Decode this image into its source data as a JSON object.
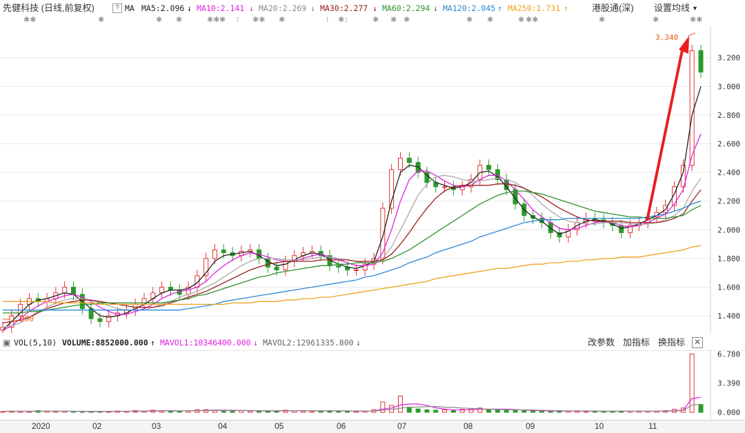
{
  "header": {
    "title": "先健科技 (日线,前复权)",
    "help_icon": "question-icon",
    "ma_label": "MA",
    "ma_items": [
      {
        "label": "MA5:2.096",
        "arrow": "↓",
        "color": "#222222"
      },
      {
        "label": "MA10:2.141",
        "arrow": "↓",
        "color": "#e020e0"
      },
      {
        "label": "MA20:2.269",
        "arrow": "↓",
        "color": "#999999"
      },
      {
        "label": "MA30:2.277",
        "arrow": "↓",
        "color": "#9b1c1c"
      },
      {
        "label": "MA60:2.294",
        "arrow": "↓",
        "color": "#2f8f2f"
      },
      {
        "label": "MA120:2.045",
        "arrow": "↑",
        "color": "#2a88d8"
      },
      {
        "label": "MA250:1.731",
        "arrow": "↑",
        "color": "#f0a020"
      }
    ],
    "hk_connect": "港股通(深)",
    "settings": "设置均线"
  },
  "colors": {
    "up": "#e03030",
    "down": "#2a9a2a",
    "grid": "#e6e6e6",
    "axis_text": "#333333",
    "highlight": "#e85a10",
    "arrow": "#e81e1e"
  },
  "chart_data": [
    {
      "type": "line",
      "title": "先健科技 (日线,前复权)",
      "ylim": [
        1.28,
        3.42
      ],
      "y_ticks": [
        "3.200",
        "3.000",
        "2.800",
        "2.600",
        "2.400",
        "2.200",
        "2.000",
        "1.800",
        "1.600",
        "1.400"
      ],
      "x_tick_labels": [
        "2020",
        "02",
        "03",
        "04",
        "05",
        "06",
        "07",
        "08",
        "09",
        "10",
        "11"
      ],
      "annotations": {
        "high_label": "3.340",
        "low_label": "1.290"
      },
      "series": [
        {
          "name": "Close",
          "values": [
            1.32,
            1.4,
            1.48,
            1.52,
            1.5,
            1.52,
            1.56,
            1.6,
            1.55,
            1.45,
            1.38,
            1.36,
            1.4,
            1.42,
            1.44,
            1.48,
            1.52,
            1.56,
            1.6,
            1.58,
            1.55,
            1.6,
            1.68,
            1.8,
            1.86,
            1.84,
            1.82,
            1.85,
            1.86,
            1.8,
            1.74,
            1.72,
            1.78,
            1.82,
            1.84,
            1.85,
            1.82,
            1.75,
            1.74,
            1.72,
            1.72,
            1.76,
            1.8,
            2.15,
            2.42,
            2.5,
            2.47,
            2.4,
            2.33,
            2.3,
            2.3,
            2.28,
            2.3,
            2.35,
            2.45,
            2.42,
            2.35,
            2.28,
            2.18,
            2.1,
            2.08,
            2.05,
            1.98,
            1.95,
            2.0,
            2.05,
            2.08,
            2.07,
            2.05,
            2.03,
            1.98,
            2.03,
            2.05,
            2.09,
            2.12,
            2.17,
            2.3,
            2.45,
            3.25,
            3.1
          ]
        },
        {
          "name": "MA5",
          "values": [
            1.3,
            1.36,
            1.42,
            1.48,
            1.51,
            1.52,
            1.54,
            1.56,
            1.55,
            1.5,
            1.45,
            1.4,
            1.39,
            1.4,
            1.42,
            1.45,
            1.48,
            1.52,
            1.56,
            1.58,
            1.58,
            1.59,
            1.63,
            1.7,
            1.78,
            1.82,
            1.83,
            1.84,
            1.85,
            1.82,
            1.78,
            1.75,
            1.76,
            1.79,
            1.82,
            1.84,
            1.83,
            1.79,
            1.76,
            1.74,
            1.73,
            1.75,
            1.78,
            1.95,
            2.2,
            2.4,
            2.45,
            2.44,
            2.38,
            2.33,
            2.31,
            2.29,
            2.3,
            2.33,
            2.4,
            2.41,
            2.37,
            2.3,
            2.22,
            2.14,
            2.09,
            2.06,
            2.01,
            1.97,
            1.99,
            2.03,
            2.06,
            2.07,
            2.06,
            2.04,
            2.01,
            2.02,
            2.04,
            2.07,
            2.1,
            2.14,
            2.25,
            2.4,
            2.8,
            3.0
          ]
        },
        {
          "name": "MA10",
          "values": [
            1.3,
            1.33,
            1.38,
            1.43,
            1.47,
            1.5,
            1.52,
            1.54,
            1.55,
            1.53,
            1.5,
            1.46,
            1.43,
            1.41,
            1.41,
            1.43,
            1.45,
            1.48,
            1.52,
            1.55,
            1.57,
            1.58,
            1.6,
            1.64,
            1.7,
            1.75,
            1.79,
            1.82,
            1.84,
            1.83,
            1.81,
            1.79,
            1.78,
            1.78,
            1.8,
            1.82,
            1.83,
            1.81,
            1.79,
            1.77,
            1.75,
            1.75,
            1.76,
            1.84,
            2.0,
            2.2,
            2.35,
            2.41,
            2.41,
            2.38,
            2.34,
            2.31,
            2.3,
            2.31,
            2.35,
            2.38,
            2.38,
            2.34,
            2.28,
            2.21,
            2.14,
            2.09,
            2.05,
            2.01,
            2.0,
            2.01,
            2.03,
            2.05,
            2.06,
            2.05,
            2.03,
            2.02,
            2.03,
            2.05,
            2.08,
            2.11,
            2.18,
            2.28,
            2.52,
            2.67
          ]
        },
        {
          "name": "MA20",
          "values": [
            1.32,
            1.33,
            1.35,
            1.39,
            1.43,
            1.46,
            1.49,
            1.51,
            1.52,
            1.52,
            1.51,
            1.49,
            1.47,
            1.45,
            1.44,
            1.44,
            1.44,
            1.46,
            1.48,
            1.5,
            1.53,
            1.55,
            1.57,
            1.6,
            1.63,
            1.67,
            1.71,
            1.75,
            1.78,
            1.8,
            1.8,
            1.8,
            1.79,
            1.79,
            1.79,
            1.8,
            1.81,
            1.81,
            1.8,
            1.79,
            1.78,
            1.77,
            1.77,
            1.8,
            1.88,
            2.0,
            2.12,
            2.24,
            2.32,
            2.37,
            2.38,
            2.37,
            2.35,
            2.34,
            2.34,
            2.35,
            2.36,
            2.35,
            2.33,
            2.29,
            2.24,
            2.18,
            2.13,
            2.09,
            2.06,
            2.05,
            2.04,
            2.04,
            2.05,
            2.05,
            2.05,
            2.04,
            2.04,
            2.04,
            2.05,
            2.07,
            2.1,
            2.15,
            2.27,
            2.36
          ]
        },
        {
          "name": "MA30",
          "values": [
            1.35,
            1.36,
            1.37,
            1.39,
            1.42,
            1.45,
            1.47,
            1.49,
            1.5,
            1.51,
            1.51,
            1.5,
            1.49,
            1.48,
            1.47,
            1.46,
            1.46,
            1.46,
            1.47,
            1.49,
            1.51,
            1.53,
            1.55,
            1.57,
            1.6,
            1.63,
            1.66,
            1.69,
            1.72,
            1.74,
            1.76,
            1.77,
            1.78,
            1.78,
            1.78,
            1.78,
            1.79,
            1.79,
            1.79,
            1.79,
            1.78,
            1.78,
            1.78,
            1.79,
            1.83,
            1.9,
            1.98,
            2.07,
            2.15,
            2.22,
            2.27,
            2.3,
            2.31,
            2.31,
            2.31,
            2.31,
            2.32,
            2.32,
            2.31,
            2.29,
            2.26,
            2.23,
            2.19,
            2.15,
            2.12,
            2.09,
            2.07,
            2.06,
            2.06,
            2.06,
            2.06,
            2.05,
            2.05,
            2.05,
            2.05,
            2.06,
            2.08,
            2.11,
            2.2,
            2.28
          ]
        },
        {
          "name": "MA60",
          "values": [
            1.42,
            1.42,
            1.42,
            1.43,
            1.43,
            1.44,
            1.45,
            1.46,
            1.47,
            1.48,
            1.48,
            1.49,
            1.49,
            1.49,
            1.49,
            1.49,
            1.49,
            1.49,
            1.49,
            1.5,
            1.51,
            1.52,
            1.54,
            1.55,
            1.57,
            1.59,
            1.61,
            1.63,
            1.65,
            1.67,
            1.68,
            1.7,
            1.71,
            1.72,
            1.73,
            1.74,
            1.75,
            1.75,
            1.76,
            1.76,
            1.77,
            1.77,
            1.77,
            1.78,
            1.8,
            1.83,
            1.86,
            1.9,
            1.94,
            1.98,
            2.02,
            2.06,
            2.1,
            2.14,
            2.18,
            2.21,
            2.24,
            2.26,
            2.27,
            2.27,
            2.26,
            2.25,
            2.23,
            2.21,
            2.19,
            2.17,
            2.15,
            2.13,
            2.12,
            2.11,
            2.1,
            2.09,
            2.09,
            2.08,
            2.08,
            2.08,
            2.09,
            2.1,
            2.14,
            2.17
          ]
        },
        {
          "name": "MA120",
          "values": [
            1.44,
            1.44,
            1.44,
            1.44,
            1.44,
            1.44,
            1.44,
            1.44,
            1.44,
            1.44,
            1.44,
            1.44,
            1.44,
            1.44,
            1.44,
            1.44,
            1.44,
            1.44,
            1.44,
            1.44,
            1.44,
            1.45,
            1.46,
            1.47,
            1.48,
            1.5,
            1.51,
            1.52,
            1.53,
            1.54,
            1.55,
            1.56,
            1.57,
            1.58,
            1.59,
            1.6,
            1.61,
            1.62,
            1.63,
            1.64,
            1.65,
            1.67,
            1.68,
            1.7,
            1.72,
            1.74,
            1.77,
            1.79,
            1.81,
            1.84,
            1.86,
            1.88,
            1.9,
            1.92,
            1.95,
            1.97,
            1.99,
            2.01,
            2.03,
            2.05,
            2.06,
            2.07,
            2.07,
            2.07,
            2.08,
            2.08,
            2.08,
            2.08,
            2.08,
            2.08,
            2.08,
            2.08,
            2.08,
            2.09,
            2.1,
            2.11,
            2.13,
            2.15,
            2.18,
            2.2
          ]
        },
        {
          "name": "MA250",
          "values": [
            1.5,
            1.5,
            1.5,
            1.5,
            1.5,
            1.5,
            1.49,
            1.49,
            1.49,
            1.49,
            1.49,
            1.48,
            1.48,
            1.48,
            1.48,
            1.48,
            1.48,
            1.48,
            1.48,
            1.48,
            1.48,
            1.48,
            1.48,
            1.48,
            1.48,
            1.48,
            1.49,
            1.49,
            1.49,
            1.5,
            1.5,
            1.5,
            1.51,
            1.51,
            1.52,
            1.52,
            1.53,
            1.53,
            1.54,
            1.55,
            1.56,
            1.57,
            1.58,
            1.59,
            1.6,
            1.61,
            1.62,
            1.63,
            1.64,
            1.66,
            1.67,
            1.68,
            1.69,
            1.7,
            1.71,
            1.72,
            1.73,
            1.73,
            1.74,
            1.75,
            1.76,
            1.76,
            1.77,
            1.77,
            1.78,
            1.78,
            1.79,
            1.79,
            1.8,
            1.8,
            1.81,
            1.81,
            1.81,
            1.82,
            1.83,
            1.84,
            1.85,
            1.86,
            1.88,
            1.89
          ]
        }
      ]
    },
    {
      "type": "bar",
      "title": "VOL(5,10)",
      "ylim": [
        0,
        6.9
      ],
      "y_ticks": [
        "6.780",
        "3.390",
        "0.000"
      ],
      "volume_values": [
        0.1,
        0.15,
        0.12,
        0.1,
        0.2,
        0.15,
        0.1,
        0.12,
        0.1,
        0.08,
        0.1,
        0.12,
        0.1,
        0.15,
        0.12,
        0.2,
        0.15,
        0.25,
        0.2,
        0.15,
        0.12,
        0.2,
        0.3,
        0.3,
        0.25,
        0.2,
        0.15,
        0.2,
        0.15,
        0.12,
        0.2,
        0.15,
        0.25,
        0.2,
        0.15,
        0.12,
        0.15,
        0.2,
        0.15,
        0.12,
        0.1,
        0.15,
        0.3,
        1.2,
        0.8,
        1.9,
        0.6,
        0.4,
        0.3,
        0.25,
        0.3,
        0.2,
        0.35,
        0.4,
        0.5,
        0.35,
        0.3,
        0.25,
        0.2,
        0.18,
        0.15,
        0.15,
        0.12,
        0.2,
        0.15,
        0.12,
        0.1,
        0.15,
        0.12,
        0.1,
        0.15,
        0.12,
        0.15,
        0.12,
        0.15,
        0.2,
        0.35,
        0.5,
        6.78,
        0.9
      ],
      "mavol1_values": [
        0.12,
        0.12,
        0.12,
        0.12,
        0.13,
        0.14,
        0.13,
        0.13,
        0.12,
        0.11,
        0.1,
        0.1,
        0.11,
        0.12,
        0.12,
        0.14,
        0.15,
        0.17,
        0.18,
        0.19,
        0.17,
        0.18,
        0.2,
        0.23,
        0.25,
        0.25,
        0.24,
        0.22,
        0.19,
        0.18,
        0.17,
        0.16,
        0.18,
        0.19,
        0.19,
        0.18,
        0.17,
        0.17,
        0.17,
        0.15,
        0.14,
        0.14,
        0.16,
        0.37,
        0.5,
        0.84,
        0.96,
        0.98,
        0.8,
        0.52,
        0.37,
        0.3,
        0.28,
        0.3,
        0.35,
        0.36,
        0.38,
        0.36,
        0.32,
        0.26,
        0.22,
        0.19,
        0.16,
        0.16,
        0.15,
        0.15,
        0.14,
        0.14,
        0.13,
        0.12,
        0.12,
        0.13,
        0.13,
        0.13,
        0.14,
        0.15,
        0.19,
        0.26,
        1.6,
        1.75
      ],
      "mavol2_values": [
        0.12,
        0.12,
        0.12,
        0.12,
        0.12,
        0.13,
        0.13,
        0.13,
        0.12,
        0.12,
        0.12,
        0.12,
        0.11,
        0.12,
        0.12,
        0.12,
        0.13,
        0.14,
        0.15,
        0.16,
        0.16,
        0.17,
        0.19,
        0.2,
        0.21,
        0.21,
        0.21,
        0.21,
        0.21,
        0.2,
        0.19,
        0.19,
        0.19,
        0.19,
        0.18,
        0.17,
        0.17,
        0.17,
        0.18,
        0.17,
        0.16,
        0.15,
        0.16,
        0.26,
        0.33,
        0.48,
        0.57,
        0.62,
        0.65,
        0.68,
        0.6,
        0.57,
        0.5,
        0.45,
        0.41,
        0.36,
        0.33,
        0.3,
        0.3,
        0.28,
        0.27,
        0.24,
        0.21,
        0.19,
        0.17,
        0.17,
        0.16,
        0.15,
        0.14,
        0.14,
        0.13,
        0.13,
        0.13,
        0.13,
        0.14,
        0.14,
        0.16,
        0.2,
        0.85,
        0.95
      ]
    }
  ],
  "volume_header": {
    "label": "VOL(5,10)",
    "volume": "VOLUME:8852000.000",
    "volume_arrow": "↑",
    "mavol1": "MAVOL1:10346400.000",
    "mavol1_arrow": "↓",
    "mavol2": "MAVOL2:12961335.800",
    "mavol2_arrow": "↓",
    "buttons": [
      "改参数",
      "加指标",
      "换指标"
    ],
    "close_icon": "close-icon"
  },
  "x_axis_labels": [
    "2020",
    "02",
    "03",
    "04",
    "05",
    "06",
    "07",
    "08",
    "09",
    "10",
    "11"
  ]
}
